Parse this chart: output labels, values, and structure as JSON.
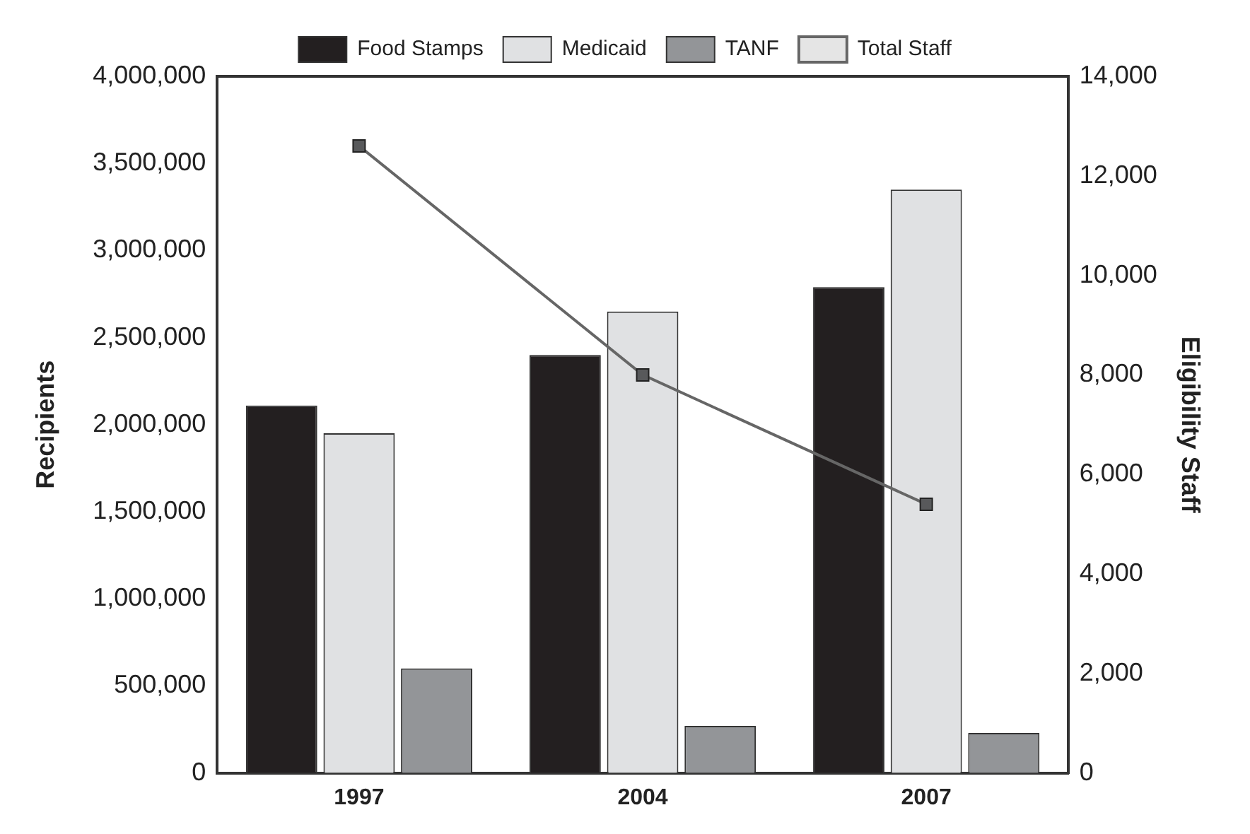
{
  "chart_data": {
    "type": "bar",
    "categories": [
      "1997",
      "2004",
      "2007"
    ],
    "ylabel": "Recipients",
    "y2label": "Eligibility Staff",
    "series": [
      {
        "name": "Food Stamps",
        "color": "#231f20",
        "values": [
          2110000,
          2400000,
          2790000
        ]
      },
      {
        "name": "Medicaid",
        "color": "#e0e1e3",
        "values": [
          1950000,
          2650000,
          3350000
        ]
      },
      {
        "name": "TANF",
        "color": "#939598",
        "values": [
          600000,
          270000,
          230000
        ]
      },
      {
        "name": "Total Staff",
        "type": "line",
        "axis": "y2",
        "color": "#666666",
        "marker": "square",
        "values": [
          12600,
          8000,
          5400
        ]
      }
    ],
    "ylim": [
      0,
      4000000
    ],
    "yticks": [
      0,
      {
        "value": 500000,
        "label": "500,000"
      },
      {
        "value": 1000000,
        "label": "1,000,000"
      },
      {
        "value": 1500000,
        "label": "1,500,000"
      },
      {
        "value": 2000000,
        "label": "2,000,000"
      },
      {
        "value": 2500000,
        "label": "2,500,000"
      },
      {
        "value": 3000000,
        "label": "3,000,000"
      },
      {
        "value": 3500000,
        "label": "3,500,000"
      },
      {
        "value": 4000000,
        "label": "4,000,000"
      }
    ],
    "y2lim": [
      0,
      14000
    ],
    "y2ticks": [
      0,
      {
        "value": 2000,
        "label": "2,000"
      },
      {
        "value": 4000,
        "label": "4,000"
      },
      {
        "value": 6000,
        "label": "6,000"
      },
      {
        "value": 8000,
        "label": "8,000"
      },
      {
        "value": 10000,
        "label": "10,000"
      },
      {
        "value": 12000,
        "label": "12,000"
      },
      {
        "value": 14000,
        "label": "14,000"
      }
    ],
    "grid": false,
    "legend": "top"
  }
}
